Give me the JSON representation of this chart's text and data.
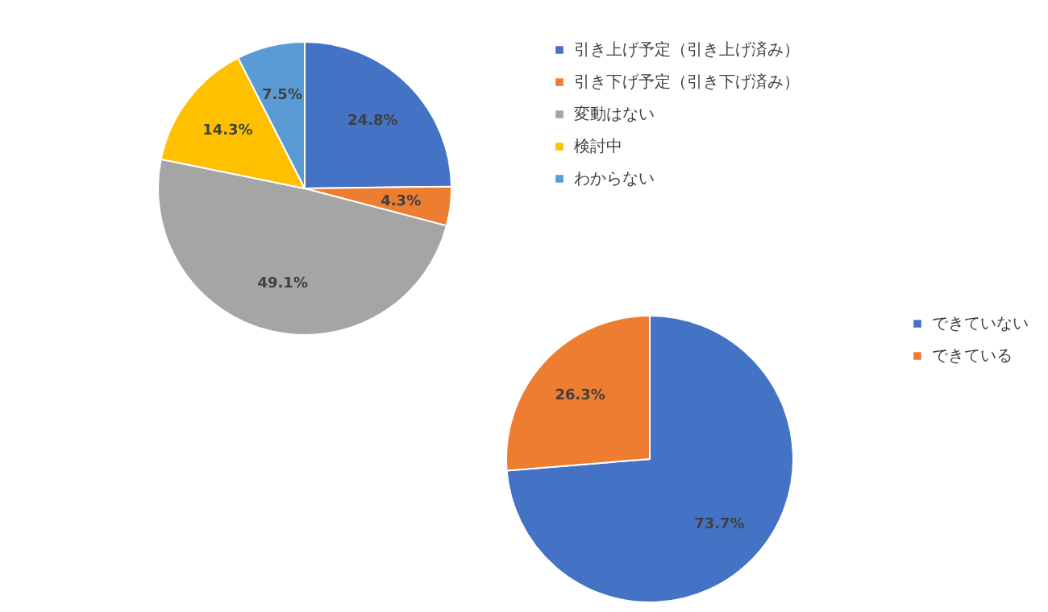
{
  "chart_data": [
    {
      "type": "pie",
      "categories": [
        "引き上げ予定（引き上げ済み）",
        "引き下げ予定（引き下げ済み）",
        "変動はない",
        "検討中",
        "わからない"
      ],
      "values": [
        24.8,
        4.3,
        49.1,
        14.3,
        7.5
      ],
      "colors": [
        "#4472c4",
        "#ed7d31",
        "#a5a5a5",
        "#ffc000",
        "#5b9bd5"
      ],
      "value_labels": [
        "24.8%",
        "4.3%",
        "49.1%",
        "14.3%",
        "7.5%"
      ],
      "legend": "right"
    },
    {
      "type": "pie",
      "categories": [
        "できていない",
        "できている"
      ],
      "values": [
        73.7,
        26.3
      ],
      "colors": [
        "#4472c4",
        "#ed7d31"
      ],
      "value_labels": [
        "73.7%",
        "26.3%"
      ],
      "legend": "right"
    }
  ]
}
